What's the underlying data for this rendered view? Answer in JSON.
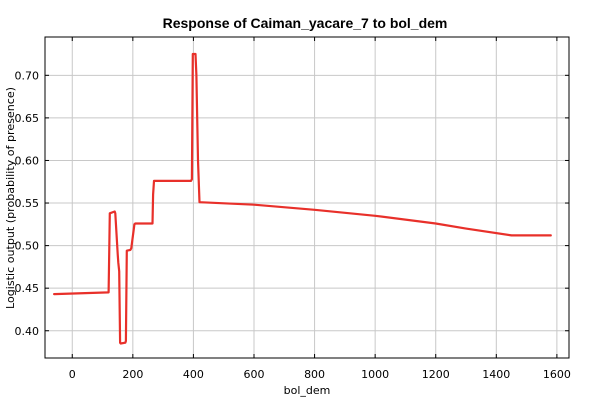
{
  "chart_data": {
    "type": "line",
    "title": "Response of Caiman_yacare_7 to bol_dem",
    "xlabel": "bol_dem",
    "ylabel": "Logistic output (probability of presence)",
    "xlim": [
      -90,
      1640
    ],
    "ylim": [
      0.368,
      0.745
    ],
    "xticks": [
      0,
      200,
      400,
      600,
      800,
      1000,
      1200,
      1400,
      1600
    ],
    "yticks": [
      0.4,
      0.45,
      0.5,
      0.55,
      0.6,
      0.65,
      0.7
    ],
    "ytick_labels": [
      "0.40",
      "0.45",
      "0.50",
      "0.55",
      "0.60",
      "0.65",
      "0.70"
    ],
    "grid": true,
    "series": [
      {
        "color": "#e8302a",
        "x": [
          -60,
          120,
          122,
          124,
          140,
          142,
          150,
          152,
          155,
          158,
          160,
          175,
          177,
          180,
          192,
          195,
          205,
          208,
          265,
          267,
          270,
          392,
          395,
          398,
          407,
          410,
          415,
          420,
          600,
          800,
          1000,
          1200,
          1300,
          1450,
          1580
        ],
        "y": [
          0.443,
          0.445,
          0.49,
          0.538,
          0.54,
          0.538,
          0.49,
          0.48,
          0.47,
          0.386,
          0.385,
          0.386,
          0.388,
          0.494,
          0.495,
          0.497,
          0.525,
          0.526,
          0.526,
          0.56,
          0.576,
          0.576,
          0.578,
          0.725,
          0.725,
          0.7,
          0.6,
          0.551,
          0.548,
          0.542,
          0.535,
          0.526,
          0.52,
          0.512,
          0.512
        ]
      }
    ]
  }
}
